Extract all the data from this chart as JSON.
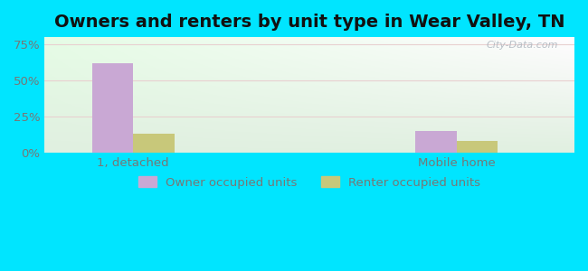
{
  "title": "Owners and renters by unit type in Wear Valley, TN",
  "categories": [
    "1, detached",
    "Mobile home"
  ],
  "owner_values": [
    62.0,
    15.0
  ],
  "renter_values": [
    13.0,
    8.0
  ],
  "owner_color": "#c9a8d4",
  "renter_color": "#c8c87a",
  "yticks": [
    0,
    25,
    50,
    75
  ],
  "ytick_labels": [
    "0%",
    "25%",
    "50%",
    "75%"
  ],
  "ylim": [
    0,
    80
  ],
  "bar_width": 0.28,
  "group_positions": [
    1.0,
    3.2
  ],
  "outer_bg": "#00e5ff",
  "legend_owner": "Owner occupied units",
  "legend_renter": "Renter occupied units",
  "watermark": "City-Data.com",
  "title_fontsize": 14,
  "axis_fontsize": 9.5,
  "legend_fontsize": 9.5,
  "xlim": [
    0.4,
    4.0
  ]
}
